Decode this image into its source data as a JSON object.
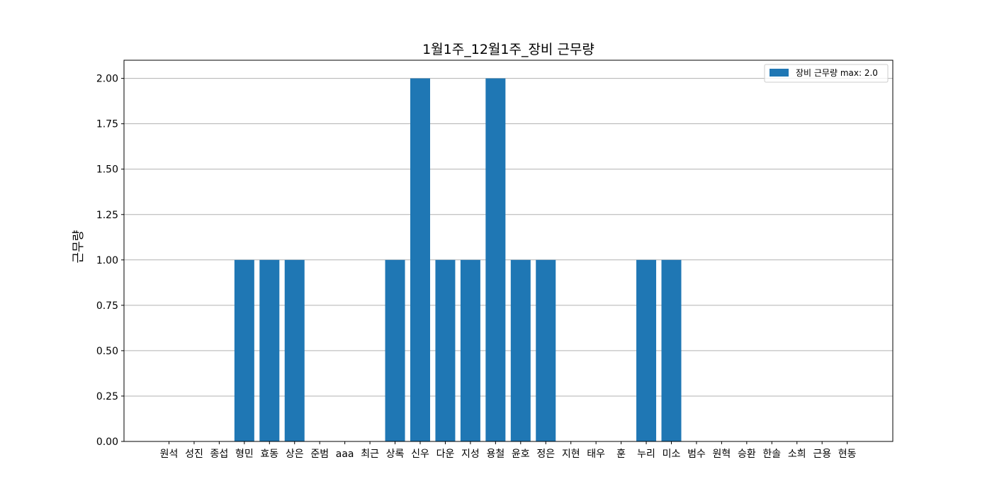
{
  "chart_data": {
    "type": "bar",
    "title": "1월1주_12월1주_장비 근무량",
    "xlabel": "",
    "ylabel": "근무량",
    "ylim": [
      0,
      2.1
    ],
    "yticks": [
      "0.00",
      "0.25",
      "0.50",
      "0.75",
      "1.00",
      "1.25",
      "1.50",
      "1.75",
      "2.00"
    ],
    "grid": "y",
    "legend_position": "top-right",
    "categories": [
      "원석",
      "성진",
      "종섭",
      "형민",
      "효동",
      "상은",
      "준범",
      "aaa",
      "최근",
      "상록",
      "신우",
      "다운",
      "지성",
      "용철",
      "윤호",
      "정은",
      "지현",
      "태우",
      "훈",
      "누리",
      "미소",
      "범수",
      "원혁",
      "승환",
      "한솔",
      "소희",
      "근용",
      "현동"
    ],
    "series": [
      {
        "name": "장비 근무량 max: 2.0",
        "color": "#1f77b4",
        "values": [
          0,
          0,
          0,
          1,
          1,
          1,
          0,
          0,
          0,
          1,
          2,
          1,
          1,
          2,
          1,
          1,
          0,
          0,
          0,
          1,
          1,
          0,
          0,
          0,
          0,
          0,
          0,
          0
        ]
      }
    ]
  }
}
